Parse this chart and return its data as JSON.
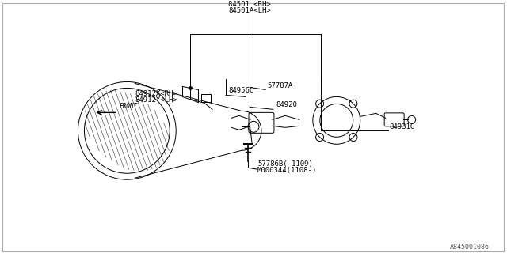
{
  "bg_color": "#ffffff",
  "line_color": "#000000",
  "text_color": "#000000",
  "ref_color": "#555555",
  "border_color": "#aaaaaa",
  "fig_width": 6.4,
  "fig_height": 3.2,
  "dpi": 100,
  "diagram_ref": "A845001086",
  "labels": {
    "top_center": [
      "84501 <RH>",
      "84501A<LH>"
    ],
    "top_right": "84931G",
    "mid_right_upper": "84920",
    "mid_center": "84956C",
    "mid_left_upper": [
      "84912X<RH>",
      "84912Y<LH>"
    ],
    "mid_center_lower": "57787A",
    "bot_center": [
      "57786B(-1109)",
      "M000344(1108-)"
    ],
    "front_arrow": "FRONT"
  }
}
